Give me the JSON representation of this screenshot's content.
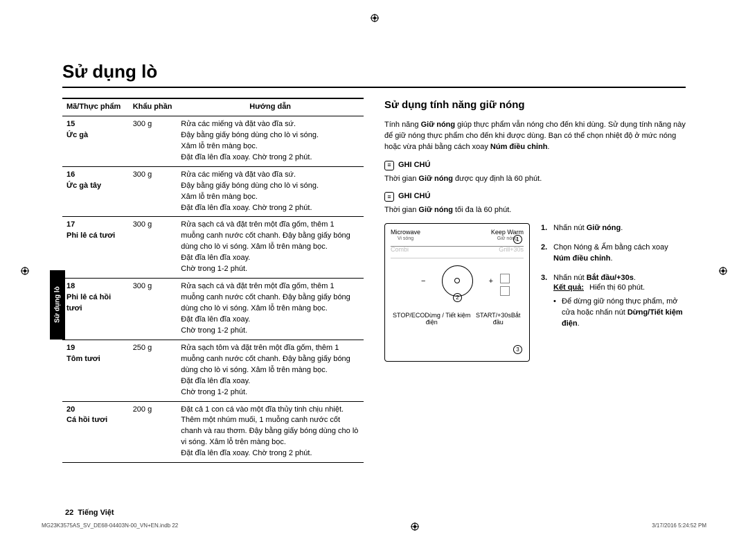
{
  "title": "Sử dụng lò",
  "sidetab": "Sử dụng lò",
  "table": {
    "headers": {
      "code": "Mã/Thực phẩm",
      "portion": "Khẩu phần",
      "guide": "Hướng dẫn"
    },
    "rows": [
      {
        "code": "15",
        "name": "Ức gà",
        "portion": "300 g",
        "guide": "Rửa các miếng và đặt vào đĩa sứ.\nĐậy bằng giấy bóng dùng cho lò vi sóng.\nXâm lỗ trên màng bọc.\nĐặt đĩa lên đĩa xoay. Chờ trong 2 phút."
      },
      {
        "code": "16",
        "name": "Ức gà tây",
        "portion": "300 g",
        "guide": "Rửa các miếng và đặt vào đĩa sứ.\nĐậy bằng giấy bóng dùng cho lò vi sóng.\nXâm lỗ trên màng bọc.\nĐặt đĩa lên đĩa xoay. Chờ trong 2 phút."
      },
      {
        "code": "17",
        "name": "Phi lê cá tươi",
        "portion": "300 g",
        "guide": "Rửa sạch cá và đặt trên một đĩa gốm, thêm 1 muỗng canh nước cốt chanh. Đậy bằng giấy bóng dùng cho lò vi sóng. Xâm lỗ trên màng bọc.\nĐặt đĩa lên đĩa xoay.\nChờ trong 1-2 phút."
      },
      {
        "code": "18",
        "name": "Phi lê cá hồi tươi",
        "portion": "300 g",
        "guide": "Rửa sạch cá và đặt trên một đĩa gốm, thêm 1 muỗng canh nước cốt chanh. Đậy bằng giấy bóng dùng cho lò vi sóng. Xâm lỗ trên màng bọc.\nĐặt đĩa lên đĩa xoay.\nChờ trong 1-2 phút."
      },
      {
        "code": "19",
        "name": "Tôm tươi",
        "portion": "250 g",
        "guide": "Rửa sạch tôm và đặt trên một đĩa gốm, thêm 1 muỗng canh nước cốt chanh. Đậy bằng giấy bóng dùng cho lò vi sóng. Xâm lỗ trên màng bọc.\nĐặt đĩa lên đĩa xoay.\nChờ trong 1-2 phút."
      },
      {
        "code": "20",
        "name": "Cá hồi tươi",
        "portion": "200 g",
        "guide": "Đặt cả 1 con cá vào một đĩa thủy tinh chịu nhiệt. Thêm một nhúm muối, 1 muỗng canh nước cốt chanh và rau thơm. Đậy bằng giấy bóng dùng cho lò vi sóng. Xâm lỗ trên màng bọc.\nĐặt đĩa lên đĩa xoay. Chờ trong 2 phút."
      }
    ]
  },
  "right": {
    "section_title": "Sử dụng tính năng giữ nóng",
    "intro_a": "Tính năng ",
    "intro_b": "Giữ nóng",
    "intro_c": " giúp thực phẩm vẫn nóng cho đến khi dùng. Sử dụng tính năng này để giữ nóng thực phẩm cho đến khi được dùng. Bạn có thể chọn nhiệt độ ở mức nóng hoặc vừa phải bằng cách xoay ",
    "intro_d": "Núm điều chỉnh",
    "note_label": "GHI CHÚ",
    "note1_a": "Thời gian ",
    "note1_b": "Giữ nóng",
    "note1_c": " được quy định là 60 phút.",
    "note2_a": "Thời gian ",
    "note2_b": "Giữ nóng",
    "note2_c": " tối đa là 60 phút.",
    "panel": {
      "microwave": "Microwave",
      "microwave_sub": "Vi sóng",
      "keepwarm": "Keep Warm",
      "keepwarm_sub": "Giữ nóng",
      "combi": "Combi",
      "grill": "Grill+30s",
      "stop": "STOP/ECO",
      "stop_sub": "Dừng / Tiết kiệm điện",
      "start": "START/+30s",
      "start_sub": "Bắt đầu"
    },
    "steps": {
      "s1_a": "Nhấn nút ",
      "s1_b": "Giữ nóng",
      "s2_a": "Chọn Nóng & Ấm bằng cách xoay ",
      "s2_b": "Núm điều chỉnh",
      "s3_a": "Nhấn nút ",
      "s3_b": "Bắt đầu/+30s",
      "result_label": "Kết quả:",
      "result_text": "Hiển thị 60 phút.",
      "bullet_a": "Để dừng giữ nóng thực phẩm, mở cửa hoặc nhấn nút ",
      "bullet_b": "Dừng/Tiết kiệm điện"
    }
  },
  "footer": {
    "page": "22",
    "lang": "Tiếng Việt"
  },
  "footline": {
    "file": "MG23K3575AS_SV_DE68-04403N-00_VN+EN.indb   22",
    "date": "3/17/2016   5:24:52 PM"
  }
}
